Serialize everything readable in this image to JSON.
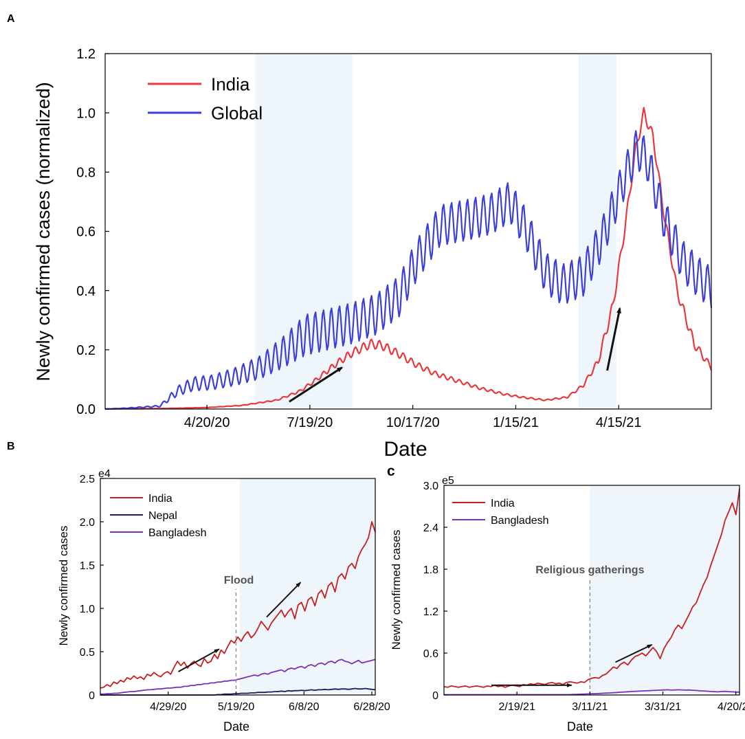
{
  "colors": {
    "india": "#e8383d",
    "india_dark": "#c81e1e",
    "global": "#3b3fd6",
    "nepal": "#1c1f5c",
    "bangladesh": "#7b2fbf",
    "shade": "#eef6fb",
    "arrow": "#111111"
  },
  "chart_data": [
    {
      "panel": "A",
      "type": "line",
      "title": "",
      "xlabel": "Date",
      "ylabel": "Newly confirmed cases (normalized)",
      "x_start": "2020-01-22",
      "x_end": "2021-07-05",
      "xticks": [
        {
          "label": "4/20/20",
          "date": "2020-04-20"
        },
        {
          "label": "7/19/20",
          "date": "2020-07-19"
        },
        {
          "label": "10/17/20",
          "date": "2020-10-17"
        },
        {
          "label": "1/15/21",
          "date": "2021-01-15"
        },
        {
          "label": "4/15/21",
          "date": "2021-04-15"
        }
      ],
      "ylim": [
        0,
        1.2
      ],
      "yticks": [
        "0.0",
        "0.2",
        "0.4",
        "0.6",
        "0.8",
        "1.0",
        "1.2"
      ],
      "shaded": [
        {
          "start": "2020-06-01",
          "end": "2020-08-25"
        },
        {
          "start": "2021-03-11",
          "end": "2021-04-13"
        }
      ],
      "arrows": [
        {
          "from": [
            "2020-07-01",
            0.025
          ],
          "to": [
            "2020-08-16",
            0.14
          ]
        },
        {
          "from": [
            "2021-04-05",
            0.13
          ],
          "to": [
            "2021-04-16",
            0.34
          ]
        }
      ],
      "legend": [
        "India",
        "Global"
      ],
      "series": [
        {
          "name": "India",
          "color": "india",
          "smooth": [
            [
              "2020-01-22",
              0
            ],
            [
              "2020-03-15",
              0.002
            ],
            [
              "2020-04-20",
              0.005
            ],
            [
              "2020-05-20",
              0.012
            ],
            [
              "2020-06-20",
              0.03
            ],
            [
              "2020-07-10",
              0.06
            ],
            [
              "2020-07-25",
              0.1
            ],
            [
              "2020-08-10",
              0.15
            ],
            [
              "2020-08-25",
              0.19
            ],
            [
              "2020-09-10",
              0.22
            ],
            [
              "2020-09-20",
              0.215
            ],
            [
              "2020-10-05",
              0.185
            ],
            [
              "2020-10-20",
              0.15
            ],
            [
              "2020-11-05",
              0.12
            ],
            [
              "2020-11-25",
              0.095
            ],
            [
              "2020-12-15",
              0.07
            ],
            [
              "2021-01-05",
              0.05
            ],
            [
              "2021-01-20",
              0.04
            ],
            [
              "2021-02-10",
              0.03
            ],
            [
              "2021-03-01",
              0.04
            ],
            [
              "2021-03-15",
              0.08
            ],
            [
              "2021-03-28",
              0.16
            ],
            [
              "2021-04-10",
              0.35
            ],
            [
              "2021-04-20",
              0.6
            ],
            [
              "2021-04-30",
              0.88
            ],
            [
              "2021-05-07",
              1.0
            ],
            [
              "2021-05-15",
              0.92
            ],
            [
              "2021-05-25",
              0.65
            ],
            [
              "2021-06-05",
              0.4
            ],
            [
              "2021-06-20",
              0.22
            ],
            [
              "2021-07-05",
              0.14
            ]
          ],
          "weekly_amp": 0.018
        },
        {
          "name": "Global",
          "color": "global",
          "smooth": [
            [
              "2020-01-22",
              0
            ],
            [
              "2020-02-10",
              0.003
            ],
            [
              "2020-03-10",
              0.01
            ],
            [
              "2020-03-25",
              0.06
            ],
            [
              "2020-04-08",
              0.085
            ],
            [
              "2020-04-25",
              0.09
            ],
            [
              "2020-05-15",
              0.11
            ],
            [
              "2020-06-05",
              0.14
            ],
            [
              "2020-06-25",
              0.19
            ],
            [
              "2020-07-15",
              0.25
            ],
            [
              "2020-08-05",
              0.27
            ],
            [
              "2020-08-25",
              0.29
            ],
            [
              "2020-09-15",
              0.32
            ],
            [
              "2020-10-05",
              0.38
            ],
            [
              "2020-10-20",
              0.5
            ],
            [
              "2020-11-10",
              0.62
            ],
            [
              "2020-12-05",
              0.64
            ],
            [
              "2020-12-25",
              0.66
            ],
            [
              "2021-01-10",
              0.7
            ],
            [
              "2021-01-25",
              0.6
            ],
            [
              "2021-02-10",
              0.46
            ],
            [
              "2021-02-25",
              0.42
            ],
            [
              "2021-03-15",
              0.45
            ],
            [
              "2021-04-01",
              0.58
            ],
            [
              "2021-04-20",
              0.78
            ],
            [
              "2021-05-01",
              0.88
            ],
            [
              "2021-05-10",
              0.84
            ],
            [
              "2021-05-25",
              0.64
            ],
            [
              "2021-06-10",
              0.5
            ],
            [
              "2021-06-25",
              0.44
            ],
            [
              "2021-07-05",
              0.41
            ]
          ],
          "weekly_amp": 0.07
        }
      ]
    },
    {
      "panel": "B",
      "type": "line",
      "xlabel": "Date",
      "ylabel": "Newly confirmed cases",
      "y_exponent": "e4",
      "x_start": "2020-04-09",
      "x_end": "2020-06-29",
      "xticks": [
        {
          "label": "4/29/20",
          "date": "2020-04-29"
        },
        {
          "label": "5/19/20",
          "date": "2020-05-19"
        },
        {
          "label": "6/8/20",
          "date": "2020-06-08"
        },
        {
          "label": "6/28/20",
          "date": "2020-06-28"
        }
      ],
      "ylim": [
        0,
        2.5
      ],
      "yticks": [
        "0",
        "0.5",
        "1.0",
        "1.5",
        "2.0",
        "2.5"
      ],
      "shaded": [
        {
          "start": "2020-05-20",
          "end": "2020-06-29"
        }
      ],
      "vline": {
        "date": "2020-05-19",
        "label": "Flood"
      },
      "arrows": [
        {
          "from": [
            "2020-05-02",
            0.27
          ],
          "to": [
            "2020-05-14",
            0.53
          ]
        },
        {
          "from": [
            "2020-05-28",
            0.9
          ],
          "to": [
            "2020-06-07",
            1.3
          ]
        }
      ],
      "legend": [
        "India",
        "Nepal",
        "Bangladesh"
      ],
      "series": [
        {
          "name": "India",
          "color": "india_dark",
          "values": [
            0.08,
            0.09,
            0.12,
            0.1,
            0.15,
            0.13,
            0.17,
            0.15,
            0.2,
            0.18,
            0.22,
            0.19,
            0.21,
            0.18,
            0.24,
            0.22,
            0.26,
            0.23,
            0.21,
            0.25,
            0.27,
            0.24,
            0.32,
            0.39,
            0.34,
            0.38,
            0.31,
            0.36,
            0.39,
            0.35,
            0.33,
            0.42,
            0.37,
            0.39,
            0.47,
            0.42,
            0.52,
            0.48,
            0.56,
            0.63,
            0.6,
            0.67,
            0.62,
            0.69,
            0.73,
            0.66,
            0.7,
            0.77,
            0.85,
            0.8,
            0.75,
            0.83,
            0.88,
            0.93,
            0.98,
            0.9,
            0.96,
            1.0,
            0.88,
            1.04,
            1.07,
            0.97,
            1.1,
            1.13,
            1.03,
            1.17,
            1.21,
            1.12,
            1.26,
            1.3,
            1.19,
            1.36,
            1.4,
            1.34,
            1.48,
            1.52,
            1.46,
            1.6,
            1.68,
            1.74,
            1.82,
            2.0,
            1.88
          ]
        },
        {
          "name": "Nepal",
          "color": "nepal",
          "values": [
            0,
            0,
            0,
            0,
            0,
            0,
            0,
            0,
            0,
            0,
            0,
            0,
            0,
            0,
            0,
            0,
            0,
            0,
            0,
            0,
            0,
            0,
            0,
            0,
            0,
            0,
            0,
            0,
            0,
            0,
            0,
            0,
            0,
            0,
            0,
            0.005,
            0.005,
            0.01,
            0.01,
            0.01,
            0.015,
            0.015,
            0.02,
            0.02,
            0.02,
            0.025,
            0.025,
            0.03,
            0.03,
            0.03,
            0.035,
            0.035,
            0.04,
            0.04,
            0.045,
            0.04,
            0.05,
            0.045,
            0.05,
            0.05,
            0.055,
            0.05,
            0.055,
            0.06,
            0.055,
            0.06,
            0.06,
            0.065,
            0.06,
            0.065,
            0.07,
            0.065,
            0.07,
            0.07,
            0.065,
            0.07,
            0.075,
            0.07,
            0.07,
            0.075,
            0.07,
            0.065,
            0.06
          ]
        },
        {
          "name": "Bangladesh",
          "color": "bangladesh",
          "values": [
            0.01,
            0.01,
            0.015,
            0.015,
            0.02,
            0.02,
            0.025,
            0.03,
            0.035,
            0.04,
            0.04,
            0.045,
            0.05,
            0.055,
            0.06,
            0.06,
            0.065,
            0.07,
            0.07,
            0.075,
            0.08,
            0.08,
            0.085,
            0.09,
            0.09,
            0.1,
            0.1,
            0.11,
            0.11,
            0.12,
            0.12,
            0.13,
            0.13,
            0.14,
            0.14,
            0.15,
            0.15,
            0.16,
            0.16,
            0.17,
            0.17,
            0.18,
            0.19,
            0.2,
            0.21,
            0.22,
            0.23,
            0.22,
            0.24,
            0.25,
            0.24,
            0.26,
            0.27,
            0.28,
            0.29,
            0.27,
            0.3,
            0.31,
            0.3,
            0.32,
            0.33,
            0.31,
            0.34,
            0.35,
            0.33,
            0.36,
            0.37,
            0.35,
            0.38,
            0.39,
            0.37,
            0.4,
            0.41,
            0.39,
            0.38,
            0.36,
            0.38,
            0.4,
            0.37,
            0.38,
            0.39,
            0.4,
            0.41
          ]
        }
      ]
    },
    {
      "panel": "C",
      "type": "line",
      "xlabel": "Date",
      "ylabel": "Newly confirmed cases",
      "y_exponent": "e5",
      "x_start": "2021-01-30",
      "x_end": "2021-04-21",
      "xticks": [
        {
          "label": "2/19/21",
          "date": "2021-02-19"
        },
        {
          "label": "3/11/21",
          "date": "2021-03-11"
        },
        {
          "label": "3/31/21",
          "date": "2021-03-31"
        },
        {
          "label": "4/20/21",
          "date": "2021-04-20"
        }
      ],
      "ylim": [
        0,
        3.0
      ],
      "yticks": [
        "0",
        "0.6",
        "1.2",
        "1.8",
        "2.4",
        "3.0"
      ],
      "shaded": [
        {
          "start": "2021-03-11",
          "end": "2021-04-21"
        }
      ],
      "vline": {
        "date": "2021-03-11",
        "label": "Religious gatherings"
      },
      "arrows": [
        {
          "from": [
            "2021-02-12",
            0.14
          ],
          "to": [
            "2021-03-06",
            0.14
          ]
        },
        {
          "from": [
            "2021-03-18",
            0.47
          ],
          "to": [
            "2021-03-28",
            0.72
          ]
        }
      ],
      "legend": [
        "India",
        "Bangladesh"
      ],
      "series": [
        {
          "name": "India",
          "color": "india_dark",
          "values": [
            0.12,
            0.11,
            0.13,
            0.12,
            0.11,
            0.12,
            0.13,
            0.11,
            0.12,
            0.13,
            0.12,
            0.11,
            0.13,
            0.12,
            0.14,
            0.12,
            0.13,
            0.11,
            0.13,
            0.14,
            0.13,
            0.12,
            0.15,
            0.14,
            0.16,
            0.15,
            0.17,
            0.16,
            0.15,
            0.17,
            0.18,
            0.16,
            0.17,
            0.15,
            0.18,
            0.19,
            0.18,
            0.17,
            0.19,
            0.18,
            0.22,
            0.24,
            0.25,
            0.24,
            0.28,
            0.3,
            0.35,
            0.4,
            0.38,
            0.44,
            0.47,
            0.43,
            0.5,
            0.55,
            0.57,
            0.6,
            0.56,
            0.62,
            0.68,
            0.62,
            0.52,
            0.66,
            0.75,
            0.82,
            0.93,
            1.0,
            0.95,
            1.05,
            1.15,
            1.26,
            1.32,
            1.45,
            1.58,
            1.68,
            1.85,
            2.0,
            2.15,
            2.3,
            2.5,
            2.62,
            2.75,
            2.58,
            2.95
          ]
        },
        {
          "name": "Bangladesh",
          "color": "bangladesh",
          "values": [
            0.005,
            0.005,
            0.005,
            0.005,
            0.005,
            0.005,
            0.005,
            0.005,
            0.005,
            0.005,
            0.005,
            0.005,
            0.005,
            0.005,
            0.005,
            0.005,
            0.005,
            0.005,
            0.005,
            0.005,
            0.005,
            0.005,
            0.005,
            0.005,
            0.005,
            0.005,
            0.005,
            0.005,
            0.005,
            0.005,
            0.005,
            0.005,
            0.005,
            0.005,
            0.005,
            0.006,
            0.008,
            0.01,
            0.012,
            0.014,
            0.016,
            0.018,
            0.02,
            0.022,
            0.025,
            0.028,
            0.03,
            0.033,
            0.036,
            0.04,
            0.043,
            0.046,
            0.05,
            0.052,
            0.055,
            0.058,
            0.06,
            0.062,
            0.065,
            0.068,
            0.07,
            0.072,
            0.075,
            0.07,
            0.072,
            0.075,
            0.073,
            0.07,
            0.072,
            0.068,
            0.065,
            0.06,
            0.058,
            0.055,
            0.05,
            0.048,
            0.045,
            0.05,
            0.052,
            0.048,
            0.045,
            0.042,
            0.04
          ]
        }
      ]
    }
  ]
}
